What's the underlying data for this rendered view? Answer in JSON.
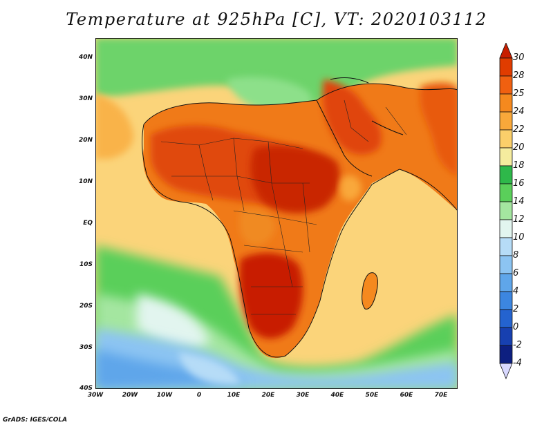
{
  "title": "Temperature at 925hPa [C], VT: 2020103112",
  "credit": "GrADS: IGES/COLA",
  "map": {
    "region": "Africa",
    "lat_labels": [
      "40N",
      "30N",
      "20N",
      "10N",
      "EQ",
      "10S",
      "20S",
      "30S",
      "40S"
    ],
    "lon_labels": [
      "30W",
      "20W",
      "10W",
      "0",
      "10E",
      "20E",
      "30E",
      "40E",
      "50E",
      "60E",
      "70E"
    ],
    "lat_range": [
      -40,
      44
    ],
    "lon_range": [
      -30,
      75
    ]
  },
  "colorbar": {
    "levels": [
      "30",
      "28",
      "25",
      "24",
      "22",
      "20",
      "18",
      "16",
      "14",
      "12",
      "10",
      "8",
      "6",
      "4",
      "2",
      "0",
      "-2",
      "-4"
    ],
    "colors": [
      "#c81e00",
      "#e03c00",
      "#f06010",
      "#f5891e",
      "#f9a83a",
      "#fbcf6a",
      "#f5ec9e",
      "#2eb84a",
      "#5acf5a",
      "#a4e6a0",
      "#e2f5ef",
      "#b6dcf7",
      "#8cc4f2",
      "#5fa6ea",
      "#3c86e0",
      "#2463cf",
      "#1740b0",
      "#0d1f80",
      "#d8d8ff"
    ]
  }
}
